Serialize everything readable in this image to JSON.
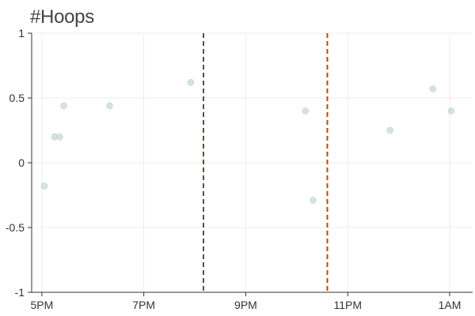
{
  "chart_data": {
    "type": "scatter",
    "title": "#Hoops",
    "xlabel": "",
    "ylabel": "",
    "x_ticks": [
      {
        "label": "5PM",
        "value": 17
      },
      {
        "label": "7PM",
        "value": 19
      },
      {
        "label": "9PM",
        "value": 21
      },
      {
        "label": "11PM",
        "value": 23
      },
      {
        "label": "1AM",
        "value": 25
      }
    ],
    "xlim": [
      16.8,
      25.45
    ],
    "ylim": [
      -1,
      1
    ],
    "y_ticks": [
      {
        "label": "1",
        "value": 1
      },
      {
        "label": "0.5",
        "value": 0.5
      },
      {
        "label": "0",
        "value": 0
      },
      {
        "label": "-0.5",
        "value": -0.5
      },
      {
        "label": "-1",
        "value": -1
      }
    ],
    "grid": true,
    "point_color": "#c9ddd3",
    "points": [
      {
        "x": 17.05,
        "y": -0.18
      },
      {
        "x": 17.25,
        "y": 0.2
      },
      {
        "x": 17.35,
        "y": 0.2
      },
      {
        "x": 17.43,
        "y": 0.44
      },
      {
        "x": 18.33,
        "y": 0.44
      },
      {
        "x": 19.92,
        "y": 0.62
      },
      {
        "x": 22.17,
        "y": 0.4
      },
      {
        "x": 22.32,
        "y": -0.29
      },
      {
        "x": 23.83,
        "y": 0.25
      },
      {
        "x": 24.67,
        "y": 0.57
      },
      {
        "x": 25.03,
        "y": 0.4
      }
    ],
    "vlines": [
      {
        "x": 20.17,
        "color": "#555544"
      },
      {
        "x": 22.6,
        "color": "#c0450a"
      }
    ]
  }
}
